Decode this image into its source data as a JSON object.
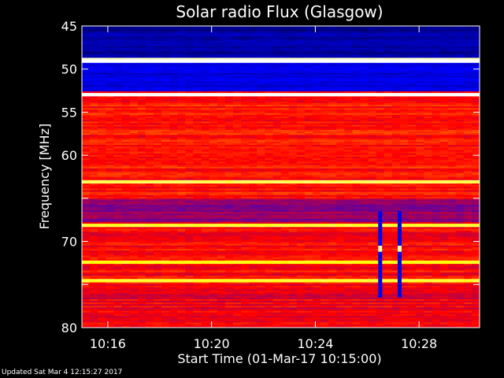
{
  "chart_data": {
    "type": "heatmap",
    "title": "Solar radio Flux (Glasgow)",
    "xlabel": "Start Time (01-Mar-17 10:15:00)",
    "ylabel": "Frequency [MHz]",
    "xlim": [
      "10:15:00",
      "10:30:20"
    ],
    "ylim": [
      45,
      80
    ],
    "x_ticks": [
      "10:16",
      "10:20",
      "10:24",
      "10:28"
    ],
    "y_ticks": [
      45,
      50,
      55,
      60,
      65,
      70,
      75,
      80
    ],
    "y_tick_labels": [
      "45",
      "50",
      "55",
      "60",
      "",
      "70",
      "",
      "80"
    ],
    "colormap": [
      "#000040",
      "#0000ff",
      "#ff0000",
      "#ffff00",
      "#ffffff"
    ],
    "bands_mhz": [
      {
        "from": 45.0,
        "to": 48.6,
        "level": 0.12
      },
      {
        "from": 48.6,
        "to": 49.2,
        "level": 0.95
      },
      {
        "from": 49.2,
        "to": 52.6,
        "level": 0.2
      },
      {
        "from": 52.6,
        "to": 53.0,
        "level": 0.8
      },
      {
        "from": 53.0,
        "to": 65.0,
        "level": 0.52
      },
      {
        "from": 65.0,
        "to": 67.6,
        "level": 0.4
      },
      {
        "from": 67.6,
        "to": 75.0,
        "level": 0.5
      },
      {
        "from": 75.0,
        "to": 80.0,
        "level": 0.48
      }
    ],
    "bright_lines_mhz": [
      49.0,
      52.8,
      63.0,
      68.0,
      72.3,
      74.5
    ],
    "bursts": [
      {
        "time": "10:26:30",
        "from_mhz": 66.5,
        "to_mhz": 76.5
      },
      {
        "time": "10:27:15",
        "from_mhz": 66.5,
        "to_mhz": 76.5
      }
    ]
  },
  "footer": {
    "updated": "Updated Sat Mar  4 12:15:27 2017"
  }
}
